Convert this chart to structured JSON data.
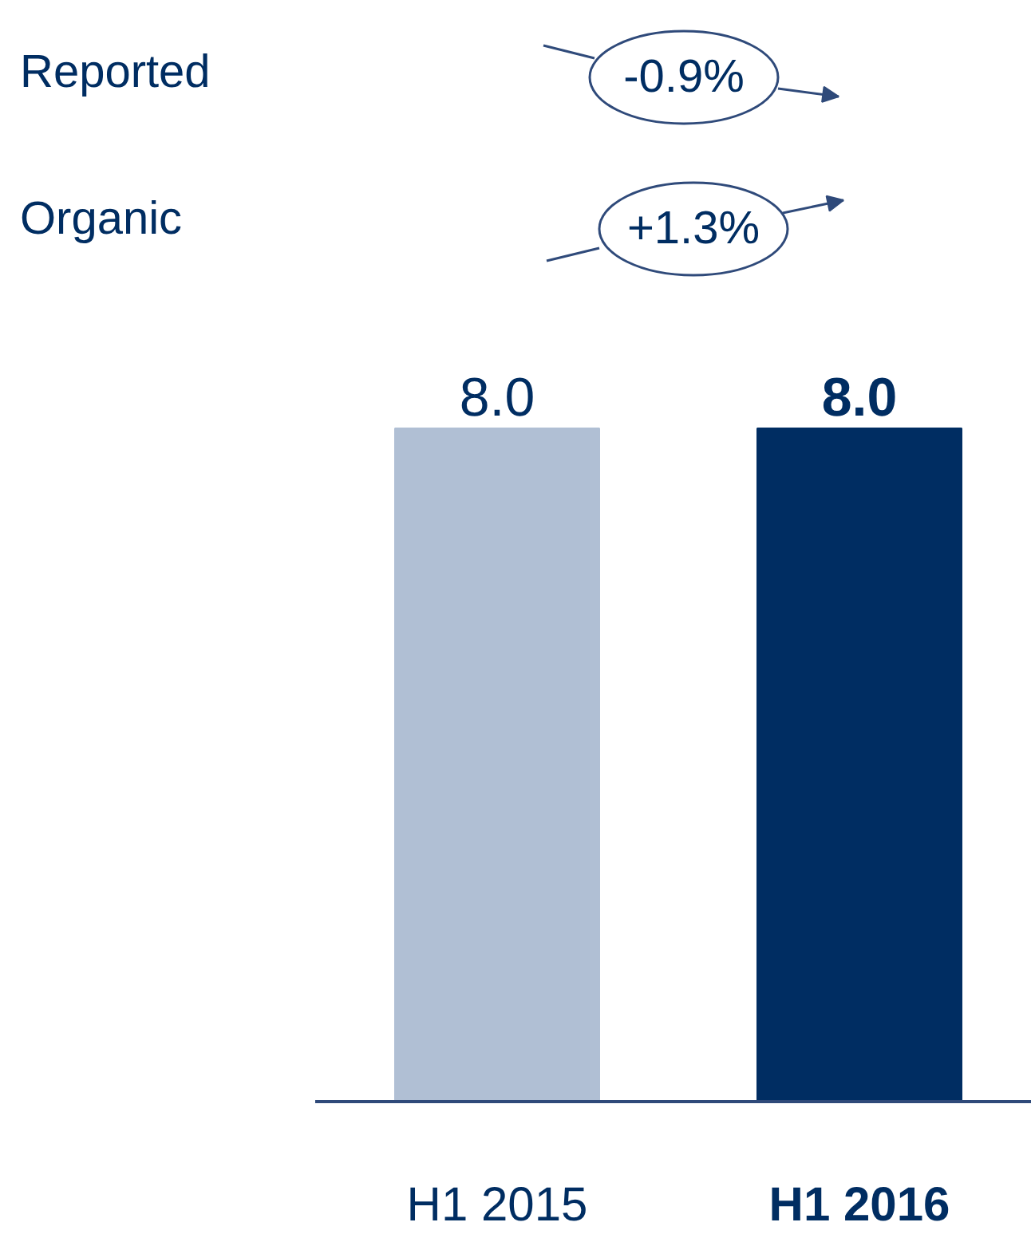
{
  "chart_data": {
    "type": "bar",
    "categories": [
      "H1 2015",
      "H1 2016"
    ],
    "values": [
      8.0,
      8.0
    ],
    "colors": [
      "#b0bfd4",
      "#002d62"
    ],
    "value_labels": [
      "8.0",
      "8.0"
    ],
    "relative": false,
    "annotations": [
      "Reported",
      "-0.9%",
      "Organic",
      "+1.3%"
    ]
  }
}
